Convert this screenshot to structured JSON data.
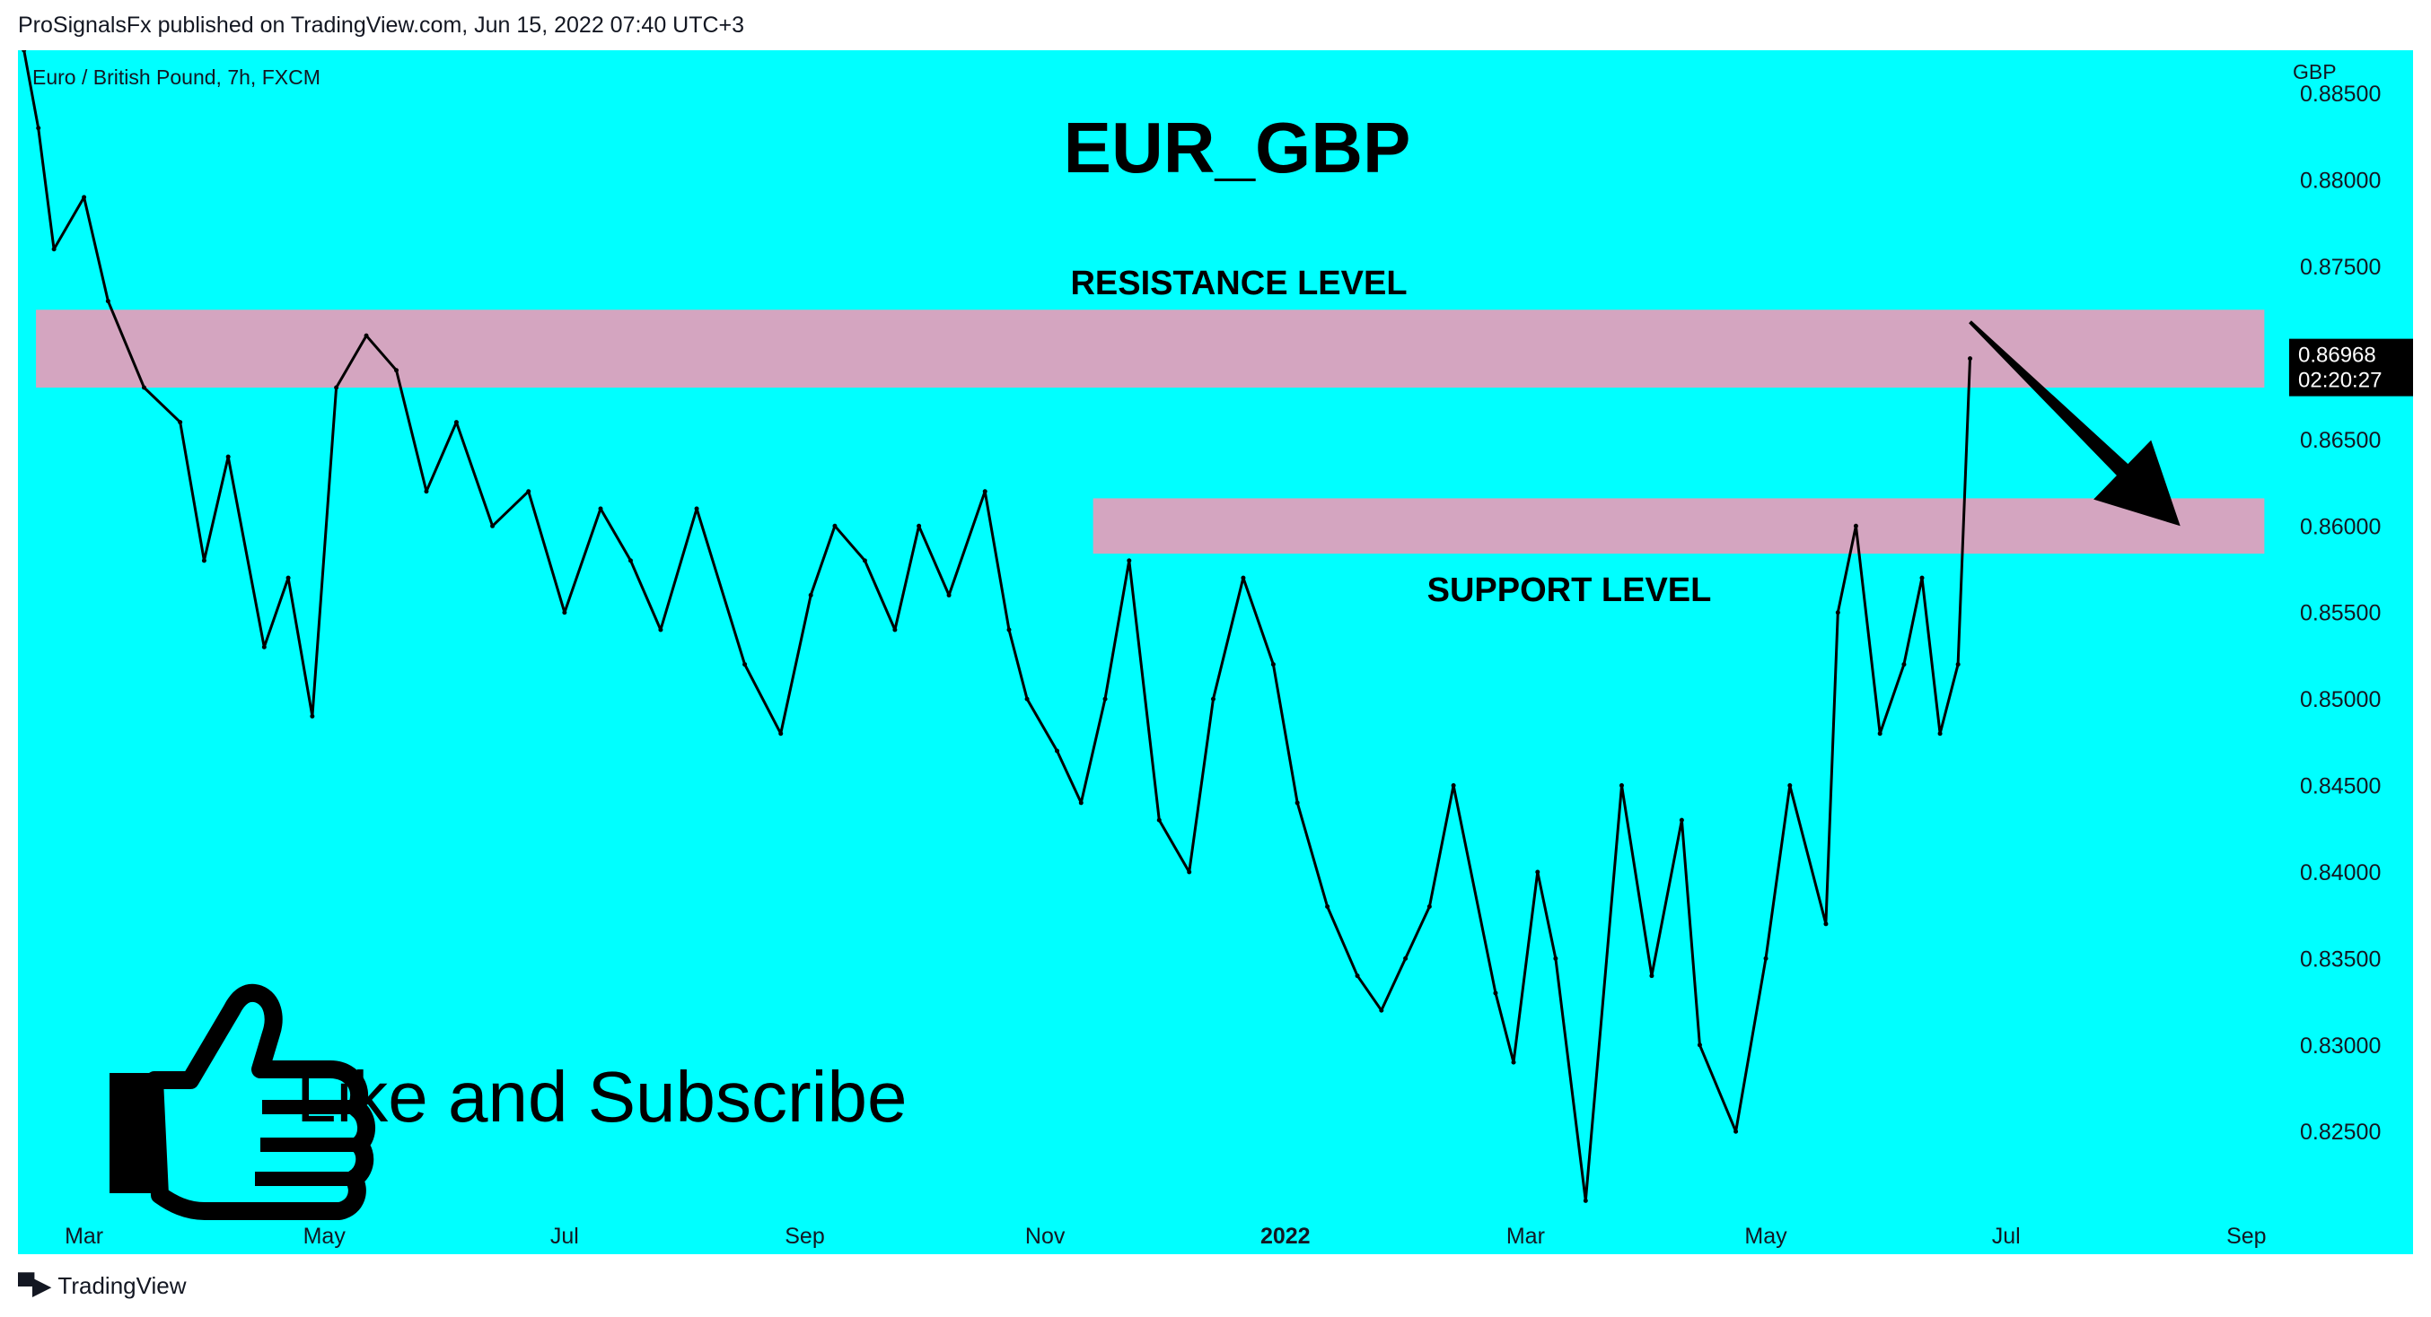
{
  "header": {
    "published_line": "ProSignalsFx published on TradingView.com, Jun 15, 2022 07:40 UTC+3"
  },
  "footer": {
    "brand": "TradingView"
  },
  "colors": {
    "background": "#00FFFF",
    "zone": "#D4A5C0",
    "candles": "#000000",
    "price_tag_bg": "#000000",
    "price_tag_text": "#FFFFFF",
    "text": "#000000",
    "axis_text": "#131722"
  },
  "chart_data": {
    "type": "line",
    "title": "EUR_GBP",
    "symbol_label": "Euro / British Pound, 7h, FXCM",
    "currency": "GBP",
    "x_ticks": [
      "Mar",
      "May",
      "Jul",
      "Sep",
      "Nov",
      "2022",
      "Mar",
      "May",
      "Jul",
      "Sep"
    ],
    "y_ticks": [
      "0.88500",
      "0.88000",
      "0.87500",
      "0.87000",
      "0.86500",
      "0.86000",
      "0.85500",
      "0.85000",
      "0.84500",
      "0.84000",
      "0.83500",
      "0.83000",
      "0.82500"
    ],
    "y_tick_values": [
      0.885,
      0.88,
      0.875,
      0.87,
      0.865,
      0.86,
      0.855,
      0.85,
      0.845,
      0.84,
      0.835,
      0.83,
      0.825
    ],
    "ylim": [
      0.8205,
      0.8875
    ],
    "x_unit": "months since Jan 2021",
    "xlim": [
      1.45,
      20.05
    ],
    "x_tick_positions": [
      2,
      4,
      6,
      8,
      10,
      12,
      14,
      16,
      18,
      20
    ],
    "last_price": "0.86968",
    "countdown": "02:20:27",
    "last_value": 0.86968,
    "series": [
      {
        "name": "EUR/GBP",
        "x": [
          1.5,
          1.62,
          1.75,
          2.0,
          2.2,
          2.5,
          2.8,
          3.0,
          3.2,
          3.5,
          3.7,
          3.9,
          4.1,
          4.35,
          4.6,
          4.85,
          5.1,
          5.4,
          5.7,
          6.0,
          6.3,
          6.55,
          6.8,
          7.1,
          7.5,
          7.8,
          8.05,
          8.25,
          8.5,
          8.75,
          8.95,
          9.2,
          9.5,
          9.7,
          9.85,
          10.1,
          10.3,
          10.5,
          10.7,
          10.95,
          11.2,
          11.4,
          11.65,
          11.9,
          12.1,
          12.35,
          12.6,
          12.8,
          13.0,
          13.2,
          13.4,
          13.75,
          13.9,
          14.1,
          14.25,
          14.5,
          14.8,
          15.05,
          15.3,
          15.45,
          15.75,
          16.0,
          16.2,
          16.5,
          16.6,
          16.75,
          16.95,
          17.15,
          17.3,
          17.45,
          17.6,
          17.7
        ],
        "values": [
          0.8875,
          0.883,
          0.876,
          0.879,
          0.873,
          0.868,
          0.866,
          0.858,
          0.864,
          0.853,
          0.857,
          0.849,
          0.868,
          0.871,
          0.869,
          0.862,
          0.866,
          0.86,
          0.862,
          0.855,
          0.861,
          0.858,
          0.854,
          0.861,
          0.852,
          0.848,
          0.856,
          0.86,
          0.858,
          0.854,
          0.86,
          0.856,
          0.862,
          0.854,
          0.85,
          0.847,
          0.844,
          0.85,
          0.858,
          0.843,
          0.84,
          0.85,
          0.857,
          0.852,
          0.844,
          0.838,
          0.834,
          0.832,
          0.835,
          0.838,
          0.845,
          0.833,
          0.829,
          0.84,
          0.835,
          0.821,
          0.845,
          0.834,
          0.843,
          0.83,
          0.825,
          0.835,
          0.845,
          0.837,
          0.855,
          0.86,
          0.848,
          0.852,
          0.857,
          0.848,
          0.852,
          0.86968
        ]
      }
    ],
    "zones": [
      {
        "label": "RESISTANCE LEVEL",
        "x_from": 1.6,
        "x_to": 20.15,
        "y_from": 0.868,
        "y_to": 0.8725,
        "label_position": "above"
      },
      {
        "label": "SUPPORT LEVEL",
        "x_from": 10.4,
        "x_to": 20.15,
        "y_from": 0.8584,
        "y_to": 0.8616,
        "label_position": "below"
      }
    ],
    "annotations": [
      {
        "type": "arrow",
        "from": [
          17.7,
          0.8718
        ],
        "to": [
          19.45,
          0.86
        ]
      }
    ],
    "promo_text": "Like and Subscribe"
  }
}
